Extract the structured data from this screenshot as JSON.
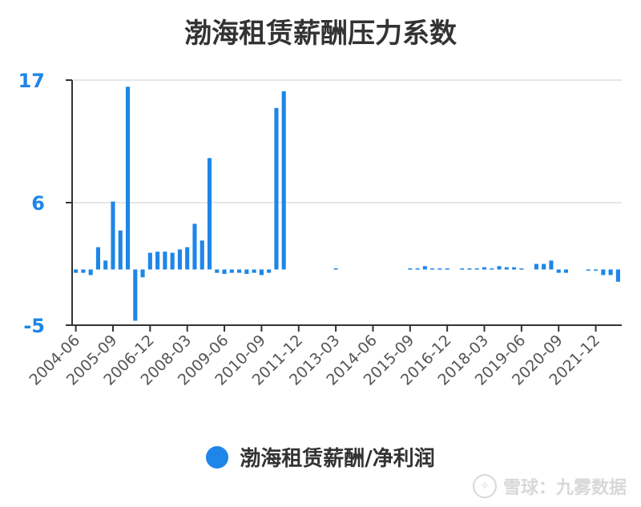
{
  "chart_data": {
    "type": "bar",
    "title": "渤海租赁薪酬压力系数",
    "xlabel": "",
    "ylabel": "",
    "ylim": [
      -5,
      17
    ],
    "y_ticks": [
      "17",
      "6",
      "-5"
    ],
    "grid": true,
    "legend_position": "bottom",
    "x_tick_labels": [
      "2004-06",
      "2005-09",
      "2006-12",
      "2008-03",
      "2009-06",
      "2010-09",
      "2011-12",
      "2013-03",
      "2014-06",
      "2015-09",
      "2016-12",
      "2018-03",
      "2019-06",
      "2020-09",
      "2021-12"
    ],
    "categories": [
      "2004-06",
      "2004-09",
      "2004-12",
      "2005-03",
      "2005-06",
      "2005-09",
      "2005-12",
      "2006-03",
      "2006-06",
      "2006-09",
      "2006-12",
      "2007-03",
      "2007-06",
      "2007-09",
      "2007-12",
      "2008-03",
      "2008-06",
      "2008-09",
      "2008-12",
      "2009-03",
      "2009-06",
      "2009-09",
      "2009-12",
      "2010-03",
      "2010-06",
      "2010-09",
      "2010-12",
      "2011-03",
      "2011-06",
      "2011-09",
      "2011-12",
      "2012-03",
      "2012-06",
      "2012-09",
      "2012-12",
      "2013-03",
      "2013-06",
      "2013-09",
      "2013-12",
      "2014-03",
      "2014-06",
      "2014-09",
      "2014-12",
      "2015-03",
      "2015-06",
      "2015-09",
      "2015-12",
      "2016-03",
      "2016-06",
      "2016-09",
      "2016-12",
      "2017-03",
      "2017-06",
      "2017-09",
      "2017-12",
      "2018-03",
      "2018-06",
      "2018-09",
      "2018-12",
      "2019-03",
      "2019-06",
      "2019-09",
      "2019-12",
      "2020-03",
      "2020-06",
      "2020-09",
      "2020-12",
      "2021-03",
      "2021-06",
      "2021-09",
      "2021-12",
      "2022-03",
      "2022-06",
      "2022-09"
    ],
    "series": [
      {
        "name": "渤海租赁薪酬/净利润",
        "values": [
          -0.3,
          -0.3,
          -0.5,
          2.0,
          0.8,
          6.1,
          3.5,
          16.4,
          -4.6,
          -0.7,
          1.5,
          1.6,
          1.6,
          1.5,
          1.8,
          2.0,
          4.1,
          2.6,
          10.0,
          -0.3,
          -0.4,
          -0.3,
          -0.3,
          -0.4,
          -0.3,
          -0.5,
          -0.3,
          14.5,
          16.0,
          null,
          null,
          null,
          null,
          null,
          null,
          0.1,
          null,
          null,
          null,
          null,
          null,
          null,
          null,
          null,
          null,
          0.1,
          0.1,
          0.3,
          0.1,
          0.1,
          0.1,
          null,
          0.1,
          0.1,
          0.1,
          0.2,
          0.1,
          0.3,
          0.2,
          0.2,
          0.1,
          null,
          0.5,
          0.5,
          0.8,
          -0.3,
          -0.3,
          null,
          null,
          -0.1,
          -0.1,
          -0.5,
          -0.5,
          -1.1
        ]
      }
    ]
  },
  "colors": {
    "series": "#1e86e8",
    "axis_tick_text": "#1e86e8",
    "title": "#333333",
    "grid": "#e6e6e6"
  },
  "legend": {
    "label": "渤海租赁薪酬/净利润",
    "icon": "circle-marker"
  },
  "watermark": {
    "text": "雪球：九雾数据",
    "icon": "snowball-logo-icon"
  }
}
